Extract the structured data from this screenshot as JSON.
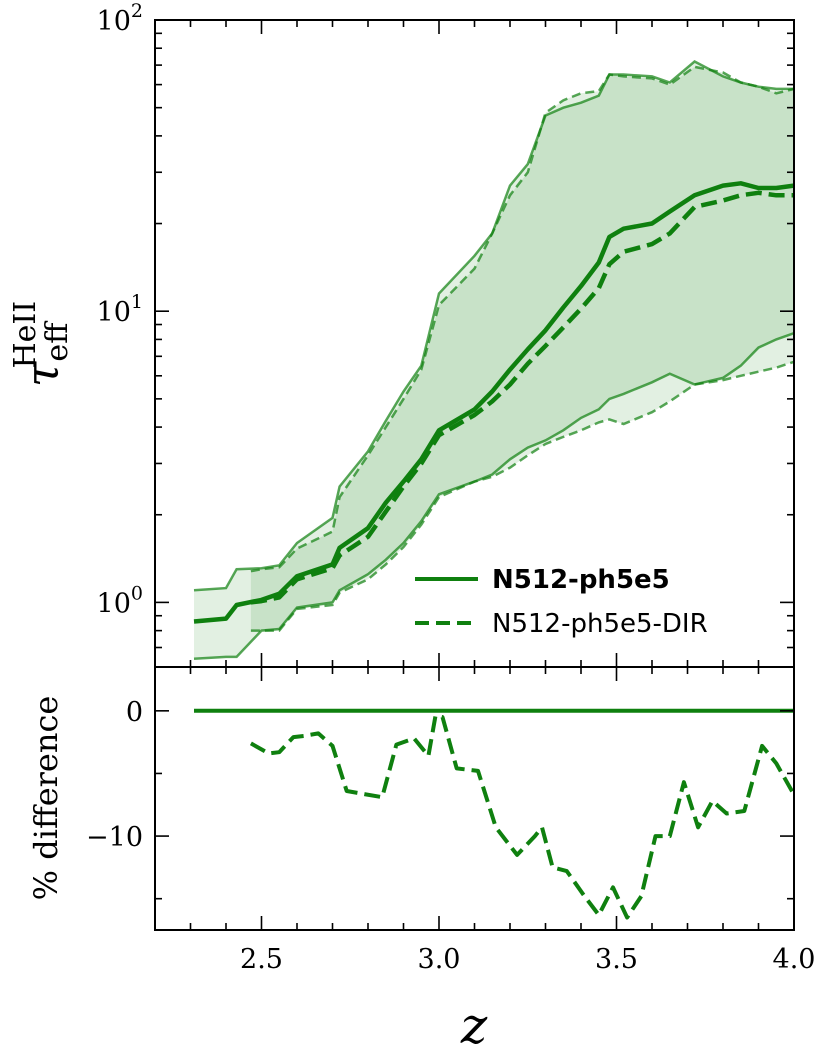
{
  "chart_data": [
    {
      "type": "line",
      "panel": "top",
      "xlim": [
        2.2,
        4.0
      ],
      "ylim": [
        0.6,
        100
      ],
      "yscale": "log",
      "grid": false,
      "legend_position": "lower-right",
      "ylabel": "τ",
      "ylabel_superscript": "HeII",
      "ylabel_subscript": "eff",
      "yticks": [
        1,
        10,
        100
      ],
      "ytick_labels": [
        {
          "base": "10",
          "exp": "0"
        },
        {
          "base": "10",
          "exp": "1"
        },
        {
          "base": "10",
          "exp": "2"
        }
      ],
      "color": "#0f800f",
      "series": [
        {
          "name": "N512-ph5e5",
          "style": "solid",
          "x": [
            2.31,
            2.4,
            2.43,
            2.5,
            2.55,
            2.6,
            2.7,
            2.72,
            2.8,
            2.85,
            2.9,
            2.95,
            3.0,
            3.1,
            3.15,
            3.2,
            3.25,
            3.3,
            3.35,
            3.4,
            3.45,
            3.48,
            3.52,
            3.6,
            3.65,
            3.72,
            3.8,
            3.85,
            3.9,
            3.95,
            4.0
          ],
          "y": [
            0.86,
            0.88,
            0.98,
            1.02,
            1.07,
            1.23,
            1.35,
            1.54,
            1.8,
            2.2,
            2.6,
            3.1,
            3.9,
            4.6,
            5.3,
            6.3,
            7.4,
            8.6,
            10.3,
            12.2,
            14.7,
            18.0,
            19.2,
            20.0,
            22.0,
            25.0,
            27.0,
            27.5,
            26.5,
            26.5,
            27.0
          ],
          "band_upper": [
            1.1,
            1.12,
            1.3,
            1.31,
            1.34,
            1.6,
            1.95,
            2.5,
            3.3,
            4.2,
            5.3,
            6.5,
            11.5,
            15.5,
            18.5,
            27.0,
            32.0,
            47.0,
            50.0,
            52.0,
            55.0,
            65.0,
            65.0,
            64.0,
            61.0,
            72.0,
            64.0,
            61.0,
            59.0,
            58.0,
            58.0
          ],
          "band_lower": [
            0.64,
            0.65,
            0.65,
            0.8,
            0.81,
            0.96,
            1.0,
            1.1,
            1.25,
            1.4,
            1.6,
            1.9,
            2.35,
            2.6,
            2.75,
            3.1,
            3.4,
            3.6,
            3.9,
            4.3,
            4.6,
            5.0,
            5.2,
            5.7,
            6.1,
            5.6,
            5.9,
            6.5,
            7.5,
            8.0,
            8.4
          ]
        },
        {
          "name": "N512-ph5e5-DIR",
          "style": "dashed",
          "x": [
            2.47,
            2.5,
            2.55,
            2.6,
            2.7,
            2.72,
            2.8,
            2.85,
            2.9,
            2.95,
            3.0,
            3.1,
            3.15,
            3.2,
            3.25,
            3.3,
            3.35,
            3.4,
            3.45,
            3.48,
            3.52,
            3.6,
            3.65,
            3.72,
            3.8,
            3.85,
            3.9,
            3.95,
            4.0
          ],
          "y": [
            1.0,
            1.01,
            1.04,
            1.2,
            1.31,
            1.45,
            1.68,
            2.05,
            2.5,
            3.0,
            3.75,
            4.4,
            4.9,
            5.6,
            6.6,
            7.6,
            8.8,
            10.2,
            12.0,
            14.5,
            16.0,
            17.0,
            18.5,
            22.8,
            24.0,
            25.0,
            25.5,
            25.0,
            25.0
          ],
          "band_upper": [
            1.28,
            1.3,
            1.32,
            1.53,
            1.75,
            2.3,
            3.2,
            4.0,
            5.0,
            6.3,
            10.5,
            14.0,
            18.5,
            25.0,
            30.0,
            48.0,
            53.0,
            56.0,
            57.0,
            65.0,
            64.0,
            63.0,
            60.0,
            69.0,
            66.0,
            61.0,
            59.0,
            56.0,
            58.0
          ],
          "band_lower": [
            0.8,
            0.8,
            0.8,
            0.95,
            0.98,
            1.08,
            1.2,
            1.35,
            1.55,
            1.85,
            2.3,
            2.6,
            2.7,
            2.9,
            3.2,
            3.5,
            3.7,
            3.9,
            4.15,
            4.25,
            4.1,
            4.5,
            4.9,
            5.6,
            5.8,
            6.0,
            6.2,
            6.4,
            6.7
          ]
        }
      ]
    },
    {
      "type": "line",
      "panel": "bottom",
      "xlim": [
        2.2,
        4.0
      ],
      "ylim": [
        -17.5,
        3.5
      ],
      "xlabel": "z",
      "ylabel": "% difference",
      "xticks": [
        2.5,
        3.0,
        3.5,
        4.0
      ],
      "xtick_labels": [
        "2.5",
        "3.0",
        "3.5",
        "4.0"
      ],
      "yticks": [
        0,
        -10
      ],
      "ytick_labels": [
        "0",
        "−10"
      ],
      "grid": false,
      "color": "#0f800f",
      "series": [
        {
          "name": "N512-ph5e5",
          "style": "solid",
          "x": [
            2.31,
            4.0
          ],
          "y": [
            0,
            0
          ]
        },
        {
          "name": "N512-ph5e5-DIR",
          "style": "dashed",
          "x": [
            2.47,
            2.52,
            2.55,
            2.59,
            2.62,
            2.66,
            2.7,
            2.74,
            2.78,
            2.84,
            2.88,
            2.93,
            2.97,
            2.99,
            3.01,
            3.05,
            3.11,
            3.16,
            3.22,
            3.27,
            3.29,
            3.32,
            3.36,
            3.41,
            3.45,
            3.49,
            3.53,
            3.57,
            3.61,
            3.65,
            3.69,
            3.73,
            3.77,
            3.81,
            3.86,
            3.91,
            3.95,
            4.0
          ],
          "y": [
            -2.6,
            -3.4,
            -3.3,
            -2.1,
            -2.0,
            -1.8,
            -2.8,
            -6.4,
            -6.6,
            -6.9,
            -2.7,
            -2.2,
            -3.6,
            -0.4,
            -0.5,
            -4.6,
            -4.8,
            -9.3,
            -11.5,
            -10.0,
            -9.3,
            -12.5,
            -12.8,
            -14.8,
            -16.3,
            -14.1,
            -16.5,
            -14.8,
            -10.0,
            -10.0,
            -5.7,
            -9.3,
            -7.2,
            -8.2,
            -8.0,
            -2.8,
            -4.2,
            -6.7
          ]
        }
      ]
    }
  ]
}
